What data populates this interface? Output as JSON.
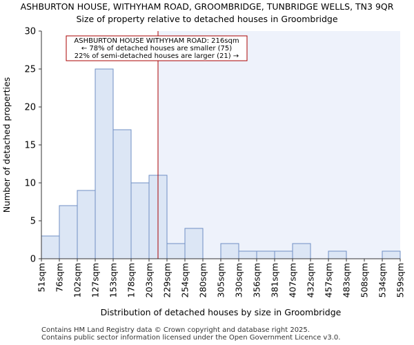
{
  "titles": {
    "line1": "ASHBURTON HOUSE, WITHYHAM ROAD, GROOMBRIDGE, TUNBRIDGE WELLS, TN3 9QR",
    "line2": "Size of property relative to detached houses in Groombridge"
  },
  "footer": {
    "line1": "Contains HM Land Registry data © Crown copyright and database right 2025.",
    "line2": "Contains public sector information licensed under the Open Government Licence v3.0."
  },
  "chart_data": {
    "type": "bar",
    "title": "Size of property relative to detached houses in Groombridge",
    "xlabel": "Distribution of detached houses by size in Groombridge",
    "ylabel": "Number of detached properties",
    "ylim": [
      0,
      30
    ],
    "yticks": [
      0,
      5,
      10,
      15,
      20,
      25,
      30
    ],
    "bin_edges": [
      51,
      76,
      102,
      127,
      153,
      178,
      203,
      229,
      254,
      280,
      305,
      330,
      356,
      381,
      407,
      432,
      457,
      483,
      508,
      534,
      559
    ],
    "tick_labels": [
      "51sqm",
      "76sqm",
      "102sqm",
      "127sqm",
      "153sqm",
      "178sqm",
      "203sqm",
      "229sqm",
      "254sqm",
      "280sqm",
      "305sqm",
      "330sqm",
      "356sqm",
      "381sqm",
      "407sqm",
      "432sqm",
      "457sqm",
      "483sqm",
      "508sqm",
      "534sqm",
      "559sqm"
    ],
    "values": [
      3,
      7,
      9,
      25,
      17,
      10,
      11,
      2,
      4,
      0,
      2,
      1,
      1,
      1,
      2,
      0,
      1,
      0,
      0,
      1
    ],
    "bar_color": "#dce6f5",
    "bar_edge_color": "#6f8fc4",
    "highlight_region_color": "#eef2fb",
    "marker": {
      "value": 216,
      "color": "#aa0000",
      "annotation": [
        "ASHBURTON HOUSE WITHYHAM ROAD: 216sqm",
        "← 78% of detached houses are smaller (75)",
        "22% of semi-detached houses are larger (21) →"
      ]
    }
  }
}
